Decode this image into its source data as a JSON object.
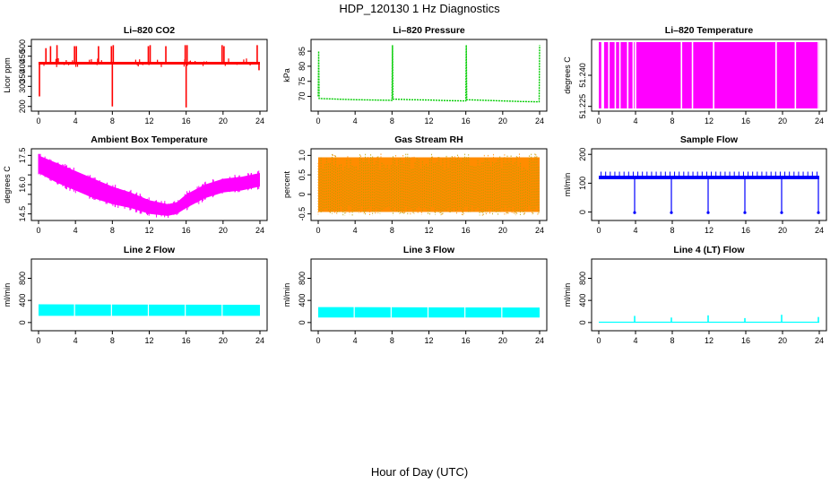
{
  "figure": {
    "title": "HDP_120130  1 Hz Diagnostics",
    "xlabel": "Hour of Day (UTC)"
  },
  "chart_data": [
    {
      "type": "line",
      "title": "Li–820 CO2",
      "ylabel": "Licor ppm",
      "color": "#ff0000",
      "xlim": [
        0,
        24
      ],
      "ylim": [
        190,
        520
      ],
      "xticks": [
        0,
        4,
        8,
        12,
        16,
        20,
        24
      ],
      "yticks": [
        200,
        250,
        300,
        350,
        400,
        450,
        500
      ],
      "ytick_labels": [
        "200",
        "",
        "300",
        "350",
        "400",
        "450",
        "500"
      ],
      "series": [
        {
          "baseline": 415,
          "x": [
            0.0,
            0.1,
            0.15,
            0.3,
            0.8,
            1.25,
            1.3,
            2.0,
            2.1,
            3.9,
            4.0,
            4.1,
            6.5,
            6.6,
            7.9,
            8.0,
            8.05,
            8.1,
            11.9,
            12.0,
            12.1,
            13.8,
            13.9,
            15.9,
            16.0,
            16.05,
            16.1,
            19.9,
            20.0,
            20.1,
            23.7,
            23.8,
            23.9,
            24.0
          ],
          "y": [
            415,
            250,
            415,
            415,
            490,
            415,
            500,
            505,
            415,
            500,
            415,
            500,
            500,
            415,
            500,
            200,
            415,
            505,
            500,
            415,
            505,
            500,
            415,
            505,
            195,
            415,
            505,
            505,
            415,
            500,
            505,
            415,
            380,
            415
          ]
        }
      ]
    },
    {
      "type": "line",
      "title": "Li–820 Pressure",
      "ylabel": "kPa",
      "color": "#00cc00",
      "xlim": [
        0,
        24
      ],
      "ylim": [
        66,
        88
      ],
      "xticks": [
        0,
        4,
        8,
        12,
        16,
        20,
        24
      ],
      "yticks": [
        70,
        75,
        80,
        85
      ],
      "ytick_labels": [
        "70",
        "75",
        "80",
        "85"
      ],
      "series": [
        {
          "x": [
            0.0,
            0.05,
            0.1,
            1,
            3,
            4,
            6,
            8,
            8.05,
            8.1,
            10,
            12,
            14,
            16,
            16.05,
            16.1,
            18,
            20,
            22,
            23.95,
            24.0
          ],
          "y": [
            70,
            85,
            69.3,
            69.2,
            69.0,
            68.9,
            68.8,
            68.7,
            87,
            69.1,
            68.9,
            68.8,
            68.6,
            68.5,
            87,
            68.9,
            68.7,
            68.5,
            68.3,
            68.2,
            87
          ]
        }
      ]
    },
    {
      "type": "bar",
      "title": "Li–820 Temperature",
      "ylabel": "degrees C",
      "color": "#ff00ff",
      "xlim": [
        0,
        24
      ],
      "ylim": [
        51.224,
        51.256
      ],
      "xticks": [
        0,
        4,
        8,
        12,
        16,
        20,
        24
      ],
      "yticks": [
        51.225,
        51.24
      ],
      "ytick_labels": [
        "51.225",
        "51.240"
      ],
      "gaps_hours": [
        0.35,
        0.5,
        1.1,
        1.8,
        2.3,
        3.15,
        3.75,
        4.0,
        9.0,
        10.2,
        12.5,
        19.3,
        21.4,
        23.9
      ]
    },
    {
      "type": "line",
      "title": "Ambient Box Temperature",
      "ylabel": "degrees C",
      "color": "#ff00ff",
      "xlim": [
        0,
        24
      ],
      "ylim": [
        14.3,
        17.7
      ],
      "xticks": [
        0,
        4,
        8,
        12,
        16,
        20,
        24
      ],
      "yticks": [
        14.5,
        15,
        15.5,
        16,
        16.5,
        17,
        17.5
      ],
      "ytick_labels": [
        "14.5",
        "",
        "",
        "16.0",
        "",
        "",
        "17.5"
      ],
      "series": [
        {
          "name": "upper",
          "x": [
            0,
            2,
            4,
            6,
            8,
            10,
            12,
            14,
            15,
            16,
            18,
            20,
            22,
            24
          ],
          "y": [
            17.5,
            17.1,
            16.7,
            16.3,
            15.9,
            15.6,
            15.2,
            15.0,
            15.1,
            15.5,
            16.0,
            16.3,
            16.4,
            16.6
          ]
        },
        {
          "name": "lower",
          "x": [
            0,
            2,
            4,
            6,
            8,
            10,
            12,
            14,
            15,
            16,
            18,
            20,
            22,
            24
          ],
          "y": [
            16.6,
            16.1,
            15.7,
            15.3,
            15.0,
            14.8,
            14.5,
            14.4,
            14.5,
            14.8,
            15.3,
            15.6,
            15.7,
            15.9
          ]
        }
      ]
    },
    {
      "type": "line",
      "title": "Gas Stream RH",
      "ylabel": "percent",
      "color": "#ff8c00",
      "secondary_color": "#b8a000",
      "xlim": [
        0,
        24
      ],
      "ylim": [
        -0.6,
        1.1
      ],
      "xticks": [
        0,
        4,
        8,
        12,
        16,
        20,
        24
      ],
      "yticks": [
        -0.5,
        0,
        0.5,
        1.0
      ],
      "ytick_labels": [
        "-0.5",
        "0",
        "0.5",
        "1.0"
      ],
      "series": [
        {
          "name": "upper",
          "x": [
            0,
            24
          ],
          "y": [
            0.95,
            0.95
          ]
        },
        {
          "name": "lower",
          "x": [
            0,
            24
          ],
          "y": [
            -0.45,
            -0.45
          ]
        }
      ]
    },
    {
      "type": "line",
      "title": "Sample Flow",
      "ylabel": "ml/min",
      "color": "#0000ff",
      "xlim": [
        0,
        24
      ],
      "ylim": [
        -20,
        210
      ],
      "xticks": [
        0,
        4,
        8,
        12,
        16,
        20,
        24
      ],
      "yticks": [
        0,
        100,
        200
      ],
      "ytick_labels": [
        "0",
        "100",
        "200"
      ],
      "series": [
        {
          "baseline": 120,
          "dips_hours": [
            4,
            8,
            12,
            16,
            20,
            24
          ],
          "dip_value": -2
        }
      ]
    },
    {
      "type": "area",
      "title": "Line 2 Flow",
      "ylabel": "ml/min",
      "color": "#00ffff",
      "xlim": [
        0,
        24
      ],
      "ylim": [
        -100,
        1100
      ],
      "xticks": [
        0,
        4,
        8,
        12,
        16,
        20,
        24
      ],
      "yticks": [
        0,
        400,
        800
      ],
      "ytick_labels": [
        "0",
        "400",
        "800"
      ],
      "series": [
        {
          "name": "upper",
          "x": [
            0,
            24
          ],
          "y": [
            330,
            320
          ]
        },
        {
          "name": "lower",
          "x": [
            0,
            24
          ],
          "y": [
            120,
            120
          ]
        }
      ]
    },
    {
      "type": "area",
      "title": "Line 3 Flow",
      "ylabel": "ml/min",
      "color": "#00ffff",
      "xlim": [
        0,
        24
      ],
      "ylim": [
        -100,
        1100
      ],
      "xticks": [
        0,
        4,
        8,
        12,
        16,
        20,
        24
      ],
      "yticks": [
        0,
        400,
        800
      ],
      "ytick_labels": [
        "0",
        "400",
        "800"
      ],
      "series": [
        {
          "name": "upper",
          "x": [
            0,
            24
          ],
          "y": [
            280,
            270
          ]
        },
        {
          "name": "lower",
          "x": [
            0,
            24
          ],
          "y": [
            90,
            90
          ]
        }
      ]
    },
    {
      "type": "line",
      "title": "Line 4 (LT) Flow",
      "ylabel": "ml/min",
      "color": "#00ffff",
      "xlim": [
        0,
        24
      ],
      "ylim": [
        -100,
        1100
      ],
      "xticks": [
        0,
        4,
        8,
        12,
        16,
        20,
        24
      ],
      "yticks": [
        0,
        400,
        800
      ],
      "ytick_labels": [
        "0",
        "400",
        "800"
      ],
      "series": [
        {
          "baseline": 5,
          "spikes_hours": [
            4,
            8,
            12,
            16,
            20,
            24
          ],
          "spike_values": [
            120,
            90,
            130,
            80,
            140,
            100
          ]
        }
      ]
    }
  ]
}
